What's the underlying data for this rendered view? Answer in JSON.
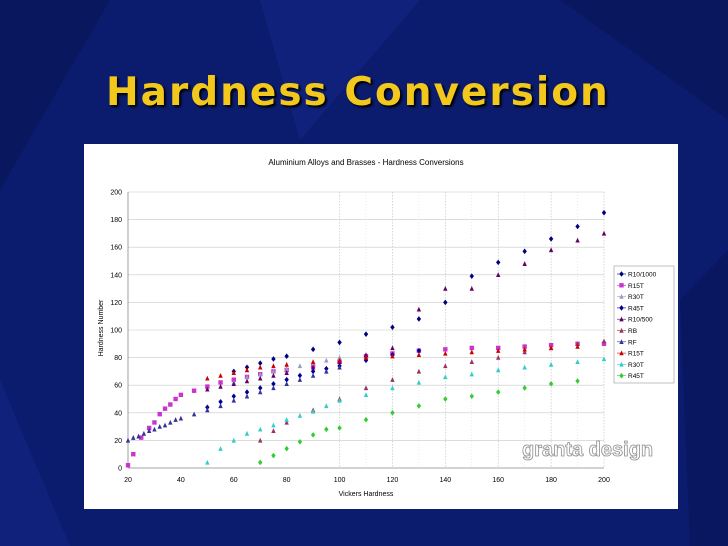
{
  "slide": {
    "title": "Hardness Conversion"
  },
  "colors": {
    "background": "#0b1c6e",
    "title": "#f2c81c"
  },
  "chart_data": {
    "type": "scatter",
    "title": "Aluminium Alloys and Brasses - Hardness Conversions",
    "xlabel": "Vickers Hardness",
    "ylabel": "Hardness Number",
    "xlim": [
      20,
      200
    ],
    "ylim": [
      0,
      200
    ],
    "xticks": [
      20,
      40,
      60,
      80,
      100,
      120,
      140,
      160,
      180,
      200
    ],
    "yticks": [
      0,
      20,
      40,
      60,
      80,
      100,
      120,
      140,
      160,
      180,
      200
    ],
    "grid": true,
    "legend": "right",
    "watermark": "granta design",
    "series": [
      {
        "name": "R10/1000",
        "color": "#000080",
        "marker": "diamond",
        "x": [
          60,
          65,
          70,
          75,
          80,
          90,
          100,
          110,
          120,
          130,
          140,
          150,
          160,
          170,
          180,
          190,
          200
        ],
        "y": [
          70,
          73,
          76,
          79,
          81,
          86,
          91,
          97,
          102,
          108,
          120,
          139,
          149,
          157,
          166,
          175,
          185
        ]
      },
      {
        "name": "R15T",
        "color": "#cc33cc",
        "marker": "square",
        "x": [
          20,
          22,
          25,
          28,
          30,
          32,
          34,
          36,
          38,
          40,
          45,
          50,
          55,
          60,
          65,
          70,
          75,
          80,
          90,
          100,
          110,
          120,
          130,
          140,
          150,
          160,
          170,
          180,
          190,
          200
        ],
        "y": [
          2,
          10,
          22,
          29,
          33,
          39,
          43,
          46,
          50,
          53,
          56,
          59,
          62,
          64,
          66,
          68,
          70,
          71,
          74,
          77,
          81,
          83,
          85,
          86,
          87,
          87,
          88,
          89,
          90,
          90
        ]
      },
      {
        "name": "R30T",
        "color": "#9999cc",
        "marker": "triangle",
        "x": [
          60,
          65,
          70,
          75,
          80,
          85,
          90,
          95,
          100
        ],
        "y": [
          62,
          66,
          68,
          70,
          72,
          74,
          76,
          78,
          80
        ]
      },
      {
        "name": "R45T",
        "color": "#000099",
        "marker": "diamond",
        "x": [
          50,
          55,
          60,
          65,
          70,
          75,
          80,
          85,
          90,
          95,
          100,
          110,
          120,
          130
        ],
        "y": [
          44,
          48,
          52,
          55,
          58,
          61,
          64,
          67,
          70,
          72,
          74,
          78,
          82,
          85
        ]
      },
      {
        "name": "R10/500",
        "color": "#660066",
        "marker": "triangle",
        "x": [
          50,
          55,
          60,
          65,
          70,
          75,
          80,
          90,
          100,
          110,
          120,
          130,
          140,
          150,
          160,
          170,
          180,
          190,
          200
        ],
        "y": [
          57,
          59,
          61,
          63,
          65,
          67,
          69,
          73,
          77,
          82,
          87,
          115,
          130,
          130,
          140,
          148,
          158,
          165,
          170
        ]
      },
      {
        "name": "RB",
        "color": "#993366",
        "marker": "triangle",
        "x": [
          70,
          75,
          80,
          90,
          100,
          110,
          120,
          130,
          140,
          150,
          160,
          170,
          180,
          190,
          200
        ],
        "y": [
          20,
          27,
          33,
          42,
          50,
          58,
          64,
          70,
          74,
          77,
          80,
          84,
          87,
          90,
          92
        ]
      },
      {
        "name": "RF",
        "color": "#333399",
        "marker": "triangle",
        "x": [
          20,
          22,
          24,
          26,
          28,
          30,
          32,
          34,
          36,
          38,
          40,
          45,
          50,
          55,
          60,
          65,
          70,
          75,
          80,
          85,
          90,
          95,
          100
        ],
        "y": [
          20,
          22,
          23,
          25,
          27,
          28,
          30,
          31,
          33,
          35,
          36,
          39,
          42,
          45,
          49,
          52,
          55,
          58,
          61,
          64,
          67,
          70,
          73
        ]
      },
      {
        "name": "R15T",
        "color": "#cc0000",
        "marker": "triangle",
        "x": [
          50,
          55,
          60,
          65,
          70,
          75,
          80,
          90,
          100,
          110,
          120,
          130,
          140,
          150,
          160,
          170,
          180,
          190
        ],
        "y": [
          65,
          67,
          69,
          71,
          73,
          74,
          75,
          77,
          78,
          80,
          81,
          82,
          83,
          84,
          85,
          86,
          87,
          88
        ]
      },
      {
        "name": "R30T",
        "color": "#33cccc",
        "marker": "triangle",
        "x": [
          50,
          55,
          60,
          65,
          70,
          75,
          80,
          85,
          90,
          95,
          100,
          110,
          120,
          130,
          140,
          150,
          160,
          170,
          180,
          190,
          200
        ],
        "y": [
          4,
          14,
          20,
          25,
          28,
          31,
          35,
          38,
          41,
          45,
          49,
          53,
          58,
          62,
          66,
          68,
          71,
          73,
          75,
          77,
          79
        ]
      },
      {
        "name": "R45T",
        "color": "#33cc33",
        "marker": "diamond",
        "x": [
          70,
          75,
          80,
          85,
          90,
          95,
          100,
          110,
          120,
          130,
          140,
          150,
          160,
          170,
          180,
          190
        ],
        "y": [
          4,
          9,
          14,
          19,
          24,
          28,
          29,
          35,
          40,
          45,
          50,
          52,
          55,
          58,
          61,
          63
        ]
      }
    ]
  }
}
